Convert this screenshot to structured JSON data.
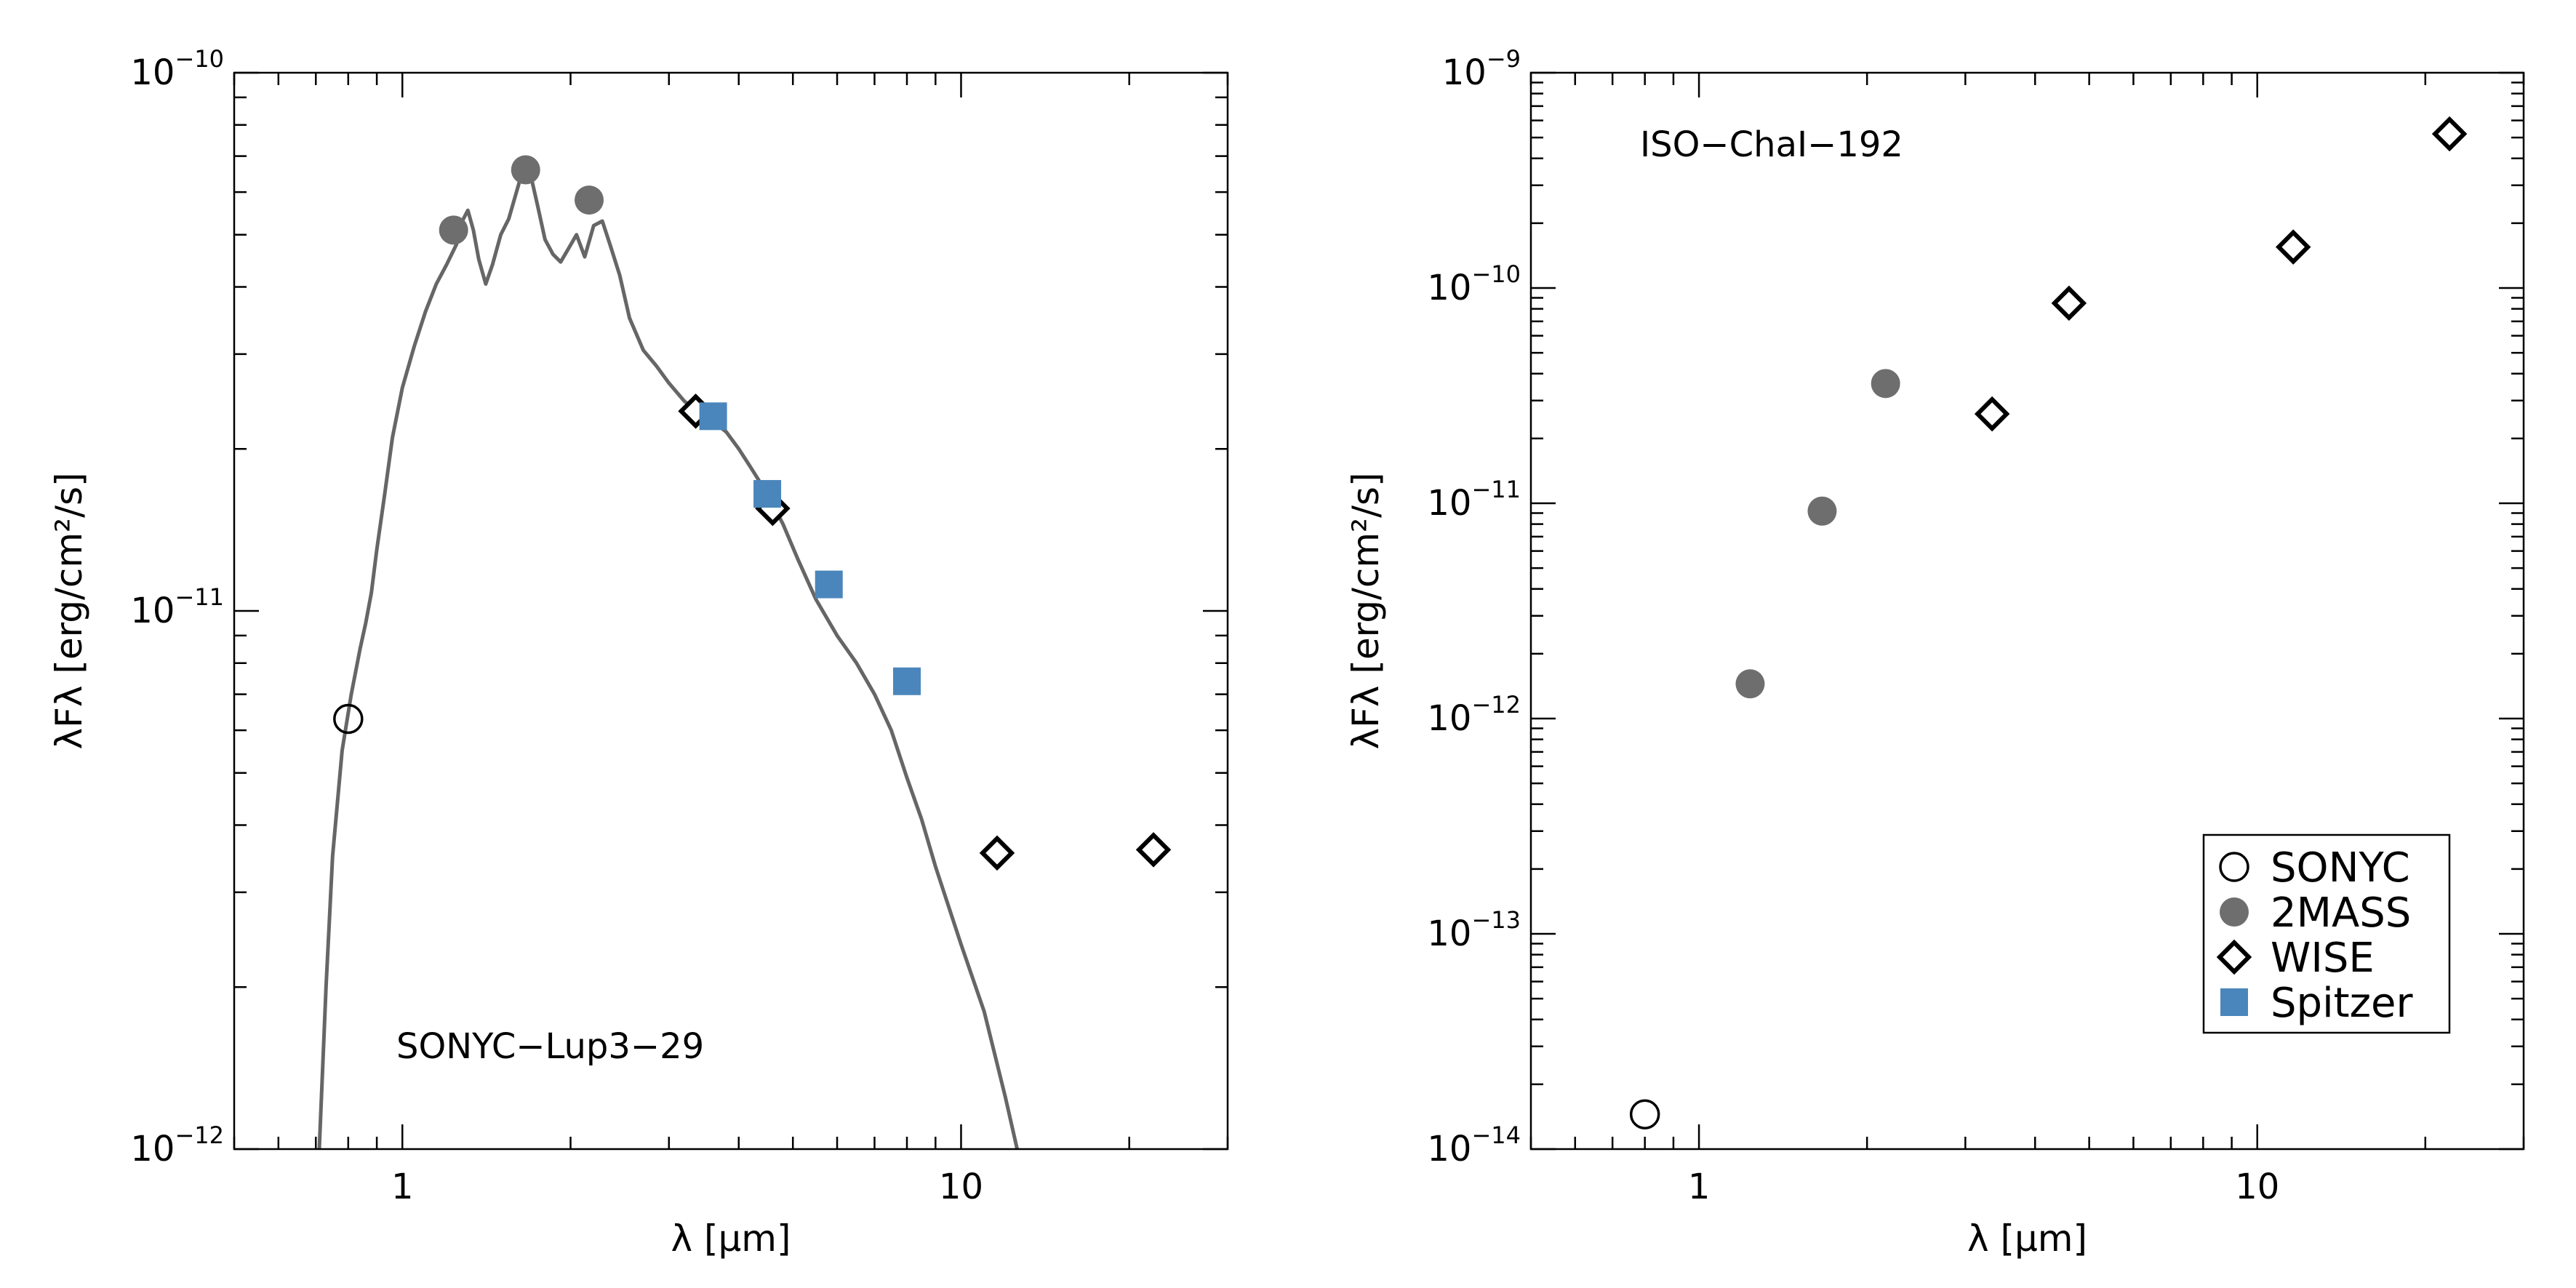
{
  "colors": {
    "axis": "#000000",
    "model": "#666666",
    "twomass": "#6e6e6e",
    "spitzer": "#4a86bb"
  },
  "chart_data": [
    {
      "type": "scatter",
      "title": "",
      "annotation": "SONYC−Lup3−29",
      "xlabel": "λ [μm]",
      "ylabel": "λFλ [erg/cm²/s]",
      "xscale": "log",
      "yscale": "log",
      "xlim": [
        0.5,
        30
      ],
      "ylim": [
        1e-12,
        1e-10
      ],
      "x_ticks": [
        {
          "value": 1,
          "label": "1"
        },
        {
          "value": 10,
          "label": "10"
        }
      ],
      "y_ticks": [
        {
          "value": 1e-12,
          "base": "10",
          "exp": "−12"
        },
        {
          "value": 1e-11,
          "base": "10",
          "exp": "−11"
        },
        {
          "value": 1e-10,
          "base": "10",
          "exp": "−10"
        }
      ],
      "series": [
        {
          "name": "SONYC",
          "marker": "open-circle",
          "x": [
            0.8
          ],
          "y": [
            6.3e-12
          ]
        },
        {
          "name": "2MASS",
          "marker": "filled-circle",
          "x": [
            1.235,
            1.662,
            2.159
          ],
          "y": [
            5.1e-11,
            6.6e-11,
            5.8e-11
          ]
        },
        {
          "name": "WISE",
          "marker": "open-diamond",
          "x": [
            3.35,
            4.6,
            11.6,
            22.1
          ],
          "y": [
            2.35e-11,
            1.55e-11,
            3.55e-12,
            3.6e-12
          ]
        },
        {
          "name": "Spitzer",
          "marker": "filled-square",
          "x": [
            3.6,
            4.5,
            5.8,
            8.0
          ],
          "y": [
            2.3e-11,
            1.65e-11,
            1.12e-11,
            7.4e-12
          ]
        }
      ],
      "model_spectrum": {
        "x": [
          0.71,
          0.73,
          0.75,
          0.78,
          0.81,
          0.84,
          0.86,
          0.88,
          0.9,
          0.93,
          0.96,
          1.0,
          1.05,
          1.1,
          1.15,
          1.2,
          1.25,
          1.28,
          1.31,
          1.34,
          1.37,
          1.41,
          1.45,
          1.5,
          1.55,
          1.6,
          1.65,
          1.7,
          1.75,
          1.8,
          1.86,
          1.92,
          1.98,
          2.05,
          2.12,
          2.2,
          2.28,
          2.36,
          2.45,
          2.55,
          2.7,
          2.85,
          3.0,
          3.2,
          3.4,
          3.6,
          3.8,
          4.0,
          4.2,
          4.5,
          4.8,
          5.1,
          5.5,
          6.0,
          6.5,
          7.0,
          7.5,
          8.0,
          8.5,
          9.0,
          10.0,
          11.0,
          12.0,
          12.6
        ],
        "y": [
          1e-12,
          2e-12,
          3.5e-12,
          5.5e-12,
          7e-12,
          8.5e-12,
          9.5e-12,
          1.08e-11,
          1.3e-11,
          1.65e-11,
          2.1e-11,
          2.6e-11,
          3.1e-11,
          3.6e-11,
          4.05e-11,
          4.4e-11,
          4.8e-11,
          5.3e-11,
          5.55e-11,
          5.1e-11,
          4.5e-11,
          4.05e-11,
          4.4e-11,
          5e-11,
          5.35e-11,
          6e-11,
          6.7e-11,
          6.4e-11,
          5.6e-11,
          4.9e-11,
          4.6e-11,
          4.45e-11,
          4.7e-11,
          5e-11,
          4.55e-11,
          5.2e-11,
          5.3e-11,
          4.75e-11,
          4.2e-11,
          3.5e-11,
          3.05e-11,
          2.85e-11,
          2.65e-11,
          2.45e-11,
          2.35e-11,
          2.25e-11,
          2.15e-11,
          2e-11,
          1.85e-11,
          1.65e-11,
          1.45e-11,
          1.25e-11,
          1.05e-11,
          9e-12,
          8e-12,
          7e-12,
          6e-12,
          4.9e-12,
          4.1e-12,
          3.35e-12,
          2.4e-12,
          1.8e-12,
          1.25e-12,
          1e-12
        ]
      }
    },
    {
      "type": "scatter",
      "title": "",
      "annotation": "ISO−ChaI−192",
      "xlabel": "λ [μm]",
      "ylabel": "λFλ [erg/cm²/s]",
      "xscale": "log",
      "yscale": "log",
      "xlim": [
        0.5,
        30
      ],
      "ylim": [
        1e-14,
        1e-09
      ],
      "x_ticks": [
        {
          "value": 1,
          "label": "1"
        },
        {
          "value": 10,
          "label": "10"
        }
      ],
      "y_ticks": [
        {
          "value": 1e-14,
          "base": "10",
          "exp": "−14"
        },
        {
          "value": 1e-13,
          "base": "10",
          "exp": "−13"
        },
        {
          "value": 1e-12,
          "base": "10",
          "exp": "−12"
        },
        {
          "value": 1e-11,
          "base": "10",
          "exp": "−11"
        },
        {
          "value": 1e-10,
          "base": "10",
          "exp": "−10"
        },
        {
          "value": 1e-09,
          "base": "10",
          "exp": "−9"
        }
      ],
      "series": [
        {
          "name": "SONYC",
          "marker": "open-circle",
          "x": [
            0.8
          ],
          "y": [
            1.45e-14
          ]
        },
        {
          "name": "2MASS",
          "marker": "filled-circle",
          "x": [
            1.235,
            1.662,
            2.159
          ],
          "y": [
            1.45e-12,
            9.2e-12,
            3.6e-11
          ]
        },
        {
          "name": "WISE",
          "marker": "open-diamond",
          "x": [
            3.35,
            4.6,
            11.6,
            22.1
          ],
          "y": [
            2.6e-11,
            8.5e-11,
            1.55e-10,
            5.2e-10
          ]
        },
        {
          "name": "Spitzer",
          "marker": "filled-square",
          "x": [],
          "y": []
        }
      ],
      "legend": {
        "placement": "bottom-right",
        "entries": [
          {
            "label": "SONYC",
            "marker": "open-circle"
          },
          {
            "label": "2MASS",
            "marker": "filled-circle"
          },
          {
            "label": "WISE",
            "marker": "open-diamond"
          },
          {
            "label": "Spitzer",
            "marker": "filled-square"
          }
        ]
      }
    }
  ]
}
